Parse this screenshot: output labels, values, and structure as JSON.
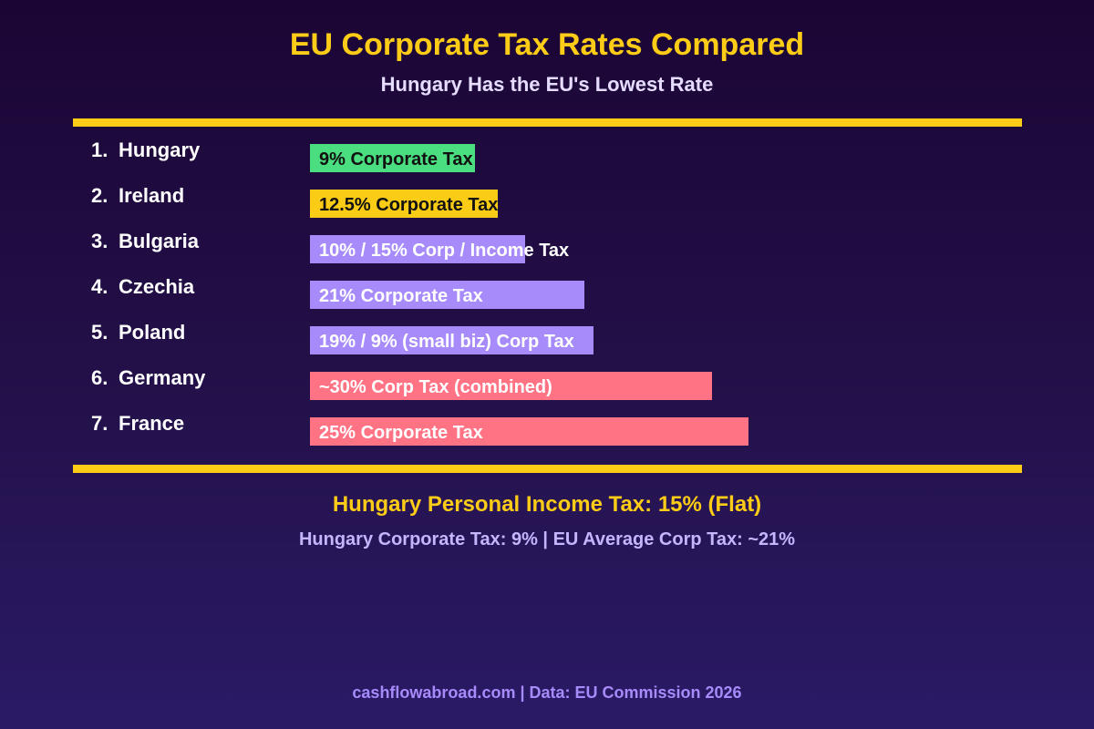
{
  "chart_data": {
    "type": "bar",
    "orientation": "horizontal",
    "title": "EU Corporate Tax Rates Compared",
    "subtitle": "Hungary Has the EU's Lowest Rate",
    "bars": [
      {
        "rank": "1.",
        "country": "Hungary",
        "label": "9% Corporate Tax",
        "fill_pct": 23.2,
        "color": "#4ade80",
        "text_color": "#111111"
      },
      {
        "rank": "2.",
        "country": "Ireland",
        "label": "12.5% Corporate Tax",
        "fill_pct": 26.4,
        "color": "#facc15",
        "text_color": "#111111"
      },
      {
        "rank": "3.",
        "country": "Bulgaria",
        "label": "10% / 15% Corp / Income Tax",
        "fill_pct": 30.3,
        "color": "#a78bfa",
        "text_color": "#ffffff"
      },
      {
        "rank": "4.",
        "country": "Czechia",
        "label": "21% Corporate Tax",
        "fill_pct": 38.6,
        "color": "#a78bfa",
        "text_color": "#ffffff"
      },
      {
        "rank": "5.",
        "country": "Poland",
        "label": "19% / 9% (small biz) Corp Tax",
        "fill_pct": 39.9,
        "color": "#a78bfa",
        "text_color": "#ffffff"
      },
      {
        "rank": "6.",
        "country": "Germany",
        "label": "~30% Corp Tax (combined)",
        "fill_pct": 56.5,
        "color": "#ff7385",
        "text_color": "#ffffff"
      },
      {
        "rank": "7.",
        "country": "France",
        "label": "25% Corporate Tax",
        "fill_pct": 61.7,
        "color": "#ff7385",
        "text_color": "#ffffff"
      }
    ],
    "grid": false
  },
  "footer": {
    "highlight": "Hungary Personal Income Tax: 15% (Flat)",
    "summary": "Hungary Corporate Tax: 9% | EU Average Corp Tax: ~21%",
    "source": "cashflowabroad.com | Data: EU Commission 2026"
  },
  "colors": {
    "accent": "#fccc16",
    "background_top": "#1b0535",
    "background_bottom": "#2a1a66"
  }
}
